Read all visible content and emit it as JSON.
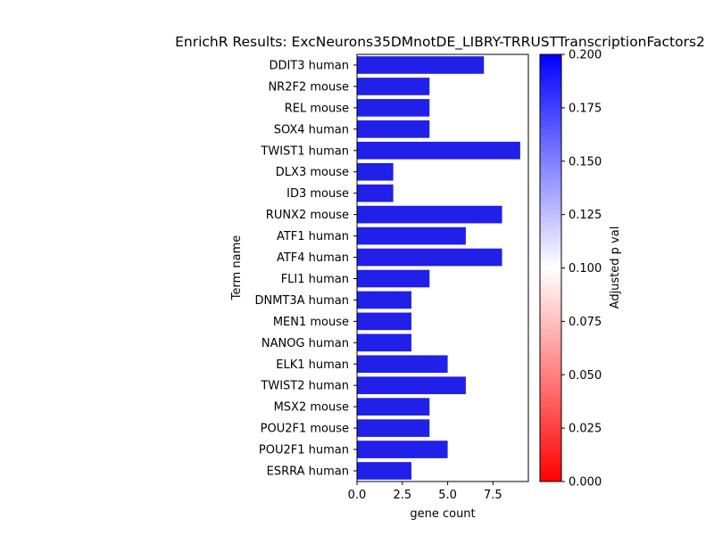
{
  "chart_data": {
    "type": "bar",
    "orientation": "horizontal",
    "title": "EnrichR Results: ExcNeurons35DMnotDE_LIBRY-TRRUSTTranscriptionFactors2",
    "xlabel": "gene count",
    "ylabel": "Term name",
    "xlim": [
      0,
      9.45
    ],
    "xticks": [
      0.0,
      2.5,
      5.0,
      7.5
    ],
    "xtick_labels": [
      "0.0",
      "2.5",
      "5.0",
      "7.5"
    ],
    "categories": [
      "DDIT3 human",
      "NR2F2 mouse",
      "REL mouse",
      "SOX4 human",
      "TWIST1 human",
      "DLX3 mouse",
      "ID3 mouse",
      "RUNX2 mouse",
      "ATF1 human",
      "ATF4 human",
      "FLI1 human",
      "DNMT3A human",
      "MEN1 mouse",
      "NANOG human",
      "ELK1 human",
      "TWIST2 human",
      "MSX2 mouse",
      "POU2F1 mouse",
      "POU2F1 human",
      "ESRRA human"
    ],
    "values": [
      7,
      4,
      4,
      4,
      9,
      2,
      2,
      8,
      6,
      8,
      4,
      3,
      3,
      3,
      5,
      6,
      4,
      4,
      5,
      3
    ],
    "bar_color": "#2020e8",
    "grid": false,
    "colorbar": {
      "label": "Adjusted p val",
      "range": [
        0.0,
        0.2
      ],
      "ticks": [
        "0.000",
        "0.025",
        "0.050",
        "0.075",
        "0.100",
        "0.125",
        "0.150",
        "0.175",
        "0.200"
      ],
      "colormap": [
        "#ff0000",
        "#ffffff",
        "#0000ff"
      ],
      "placement": "right"
    }
  }
}
